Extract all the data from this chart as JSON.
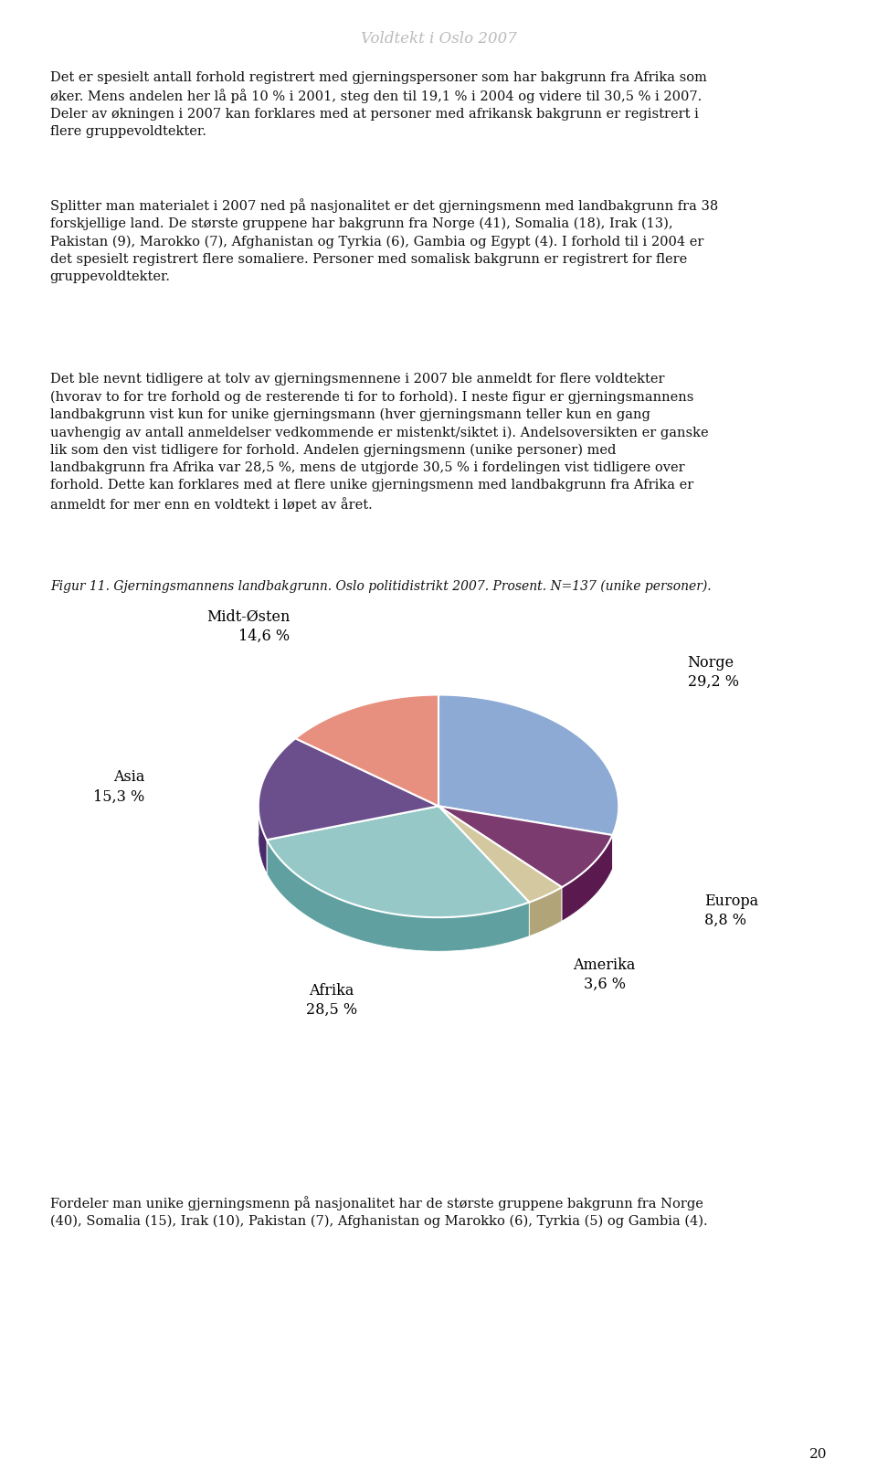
{
  "page_title": "Voldtekt i Oslo 2007",
  "para1": "Det er spesielt antall forhold registrert med gjerningspersoner som har bakgrunn fra Afrika som\nøker. Mens andelen her lå på 10 % i 2001, steg den til 19,1 % i 2004 og videre til 30,5 % i 2007.\nDeler av økningen i 2007 kan forklares med at personer med afrikansk bakgrunn er registrert i\nflere gruppevoldtekter.",
  "para2": "Splitter man materialet i 2007 ned på nasjonalitet er det gjerningsmenn med landbakgrunn fra 38\nforskjellige land. De største gruppene har bakgrunn fra Norge (41), Somalia (18), Irak (13),\nPakistan (9), Marokko (7), Afghanistan og Tyrkia (6), Gambia og Egypt (4). I forhold til i 2004 er\ndet spesielt registrert flere somaliere. Personer med somalisk bakgrunn er registrert for flere\ngruppevoldtekter.",
  "para3": "Det ble nevnt tidligere at tolv av gjerningsmennene i 2007 ble anmeldt for flere voldtekter\n(hvorav to for tre forhold og de resterende ti for to forhold). I neste figur er gjerningsmannens\nlandbakgrunn vist kun for unike gjerningsmann (hver gjerningsmann teller kun en gang\nuavhengig av antall anmeldelser vedkommende er mistenkt/siktet i). Andelsoversikten er ganske\nlik som den vist tidligere for forhold. Andelen gjerningsmenn (unike personer) med\nlandbakgrunn fra Afrika var 28,5 %, mens de utgjorde 30,5 % i fordelingen vist tidligere over\nforhold. Dette kan forklares med at flere unike gjerningsmenn med landbakgrunn fra Afrika er\nanmeldt for mer enn en voldtekt i løpet av året.",
  "figure_caption": "Figur 11. Gjerningsmannens landbakgrunn. Oslo politidistrikt 2007. Prosent. N=137 (unike personer).",
  "pie_slices": [
    {
      "label": "Norge",
      "value": 29.2,
      "pct_str": "29,2 %",
      "color": "#8CAAD4",
      "side_color": "#6080A8"
    },
    {
      "label": "Europa",
      "value": 8.8,
      "pct_str": "8,8 %",
      "color": "#7B3B6E",
      "side_color": "#5A1A50"
    },
    {
      "label": "Amerika",
      "value": 3.6,
      "pct_str": "3,6 %",
      "color": "#D4C8A0",
      "side_color": "#B0A478"
    },
    {
      "label": "Afrika",
      "value": 28.5,
      "pct_str": "28,5 %",
      "color": "#96C8C8",
      "side_color": "#60A0A0"
    },
    {
      "label": "Asia",
      "value": 15.3,
      "pct_str": "15,3 %",
      "color": "#6B4E8C",
      "side_color": "#4A2A6A"
    },
    {
      "label": "Midt-Østen",
      "value": 14.6,
      "pct_str": "14,6 %",
      "color": "#E89080",
      "side_color": "#C06050"
    }
  ],
  "para_footer": "Fordeler man unike gjerningsmenn på nasjonalitet har de største gruppene bakgrunn fra Norge\n(40), Somalia (15), Irak (10), Pakistan (7), Afghanistan og Marokko (6), Tyrkia (5) og Gambia (4).",
  "page_number": "20",
  "bg_color": "#FFFFFF",
  "text_color": "#111111",
  "title_color": "#BBBBBB"
}
